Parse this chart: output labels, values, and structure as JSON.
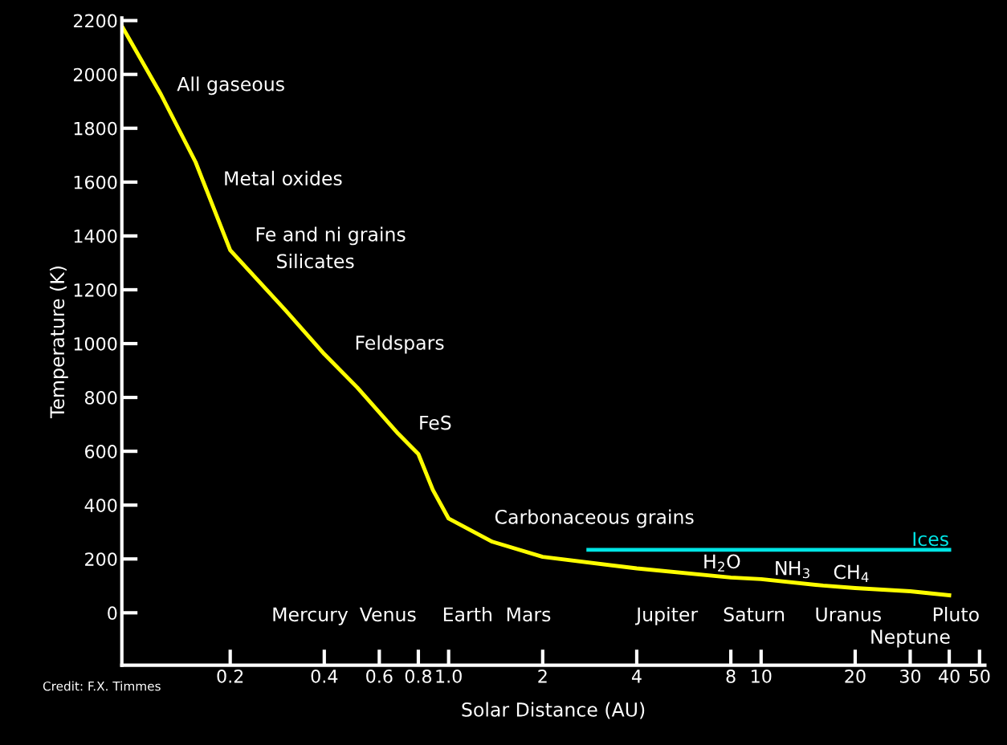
{
  "chart_data": {
    "type": "line",
    "xlabel": "Solar Distance (AU)",
    "ylabel": "Temperature (K)",
    "log": "x",
    "xlim": [
      0.09,
      52
    ],
    "xticks": [
      0.2,
      0.4,
      0.6,
      0.8,
      {
        "value": 1,
        "label": "1.0"
      },
      2,
      4,
      8,
      10,
      20,
      30,
      40,
      50
    ],
    "ylim": [
      -195,
      2210
    ],
    "yticks": [
      0,
      200,
      400,
      600,
      800,
      1000,
      1200,
      1400,
      1600,
      1800,
      2000,
      2200
    ],
    "grid": false,
    "marker": "none",
    "line_style": "solid",
    "series": [
      {
        "color": "#ffff00",
        "x": [
          0.09,
          0.12,
          0.155,
          0.2,
          0.3,
          0.4,
          0.51,
          0.69,
          0.8,
          0.89,
          1.0,
          1.38,
          2,
          4,
          8,
          10,
          15.8,
          20,
          30,
          40
        ],
        "values": [
          2180,
          1926,
          1674,
          1347,
          1125,
          961,
          837,
          665,
          590,
          457,
          350,
          264,
          208,
          165,
          131,
          125,
          101,
          92,
          80,
          65
        ]
      },
      {
        "name": "Ices",
        "color": "#00e5e5",
        "x": [
          2.8,
          40
        ],
        "values": [
          234,
          234
        ]
      }
    ],
    "annotations": [
      "All gaseous",
      "Metal oxides",
      "Fe and ni grains",
      "Silicates",
      "Feldspars",
      "FeS",
      "Carbonaceous grains",
      "H$_{2}$O",
      "NH$_{3}$",
      "CH$_{4}$",
      "Mercury",
      "Venus",
      "Earth",
      "Mars",
      "Jupiter",
      "Saturn",
      "Uranus",
      "Neptune",
      "Pluto",
      "Credit: F.X. Timmes"
    ]
  }
}
